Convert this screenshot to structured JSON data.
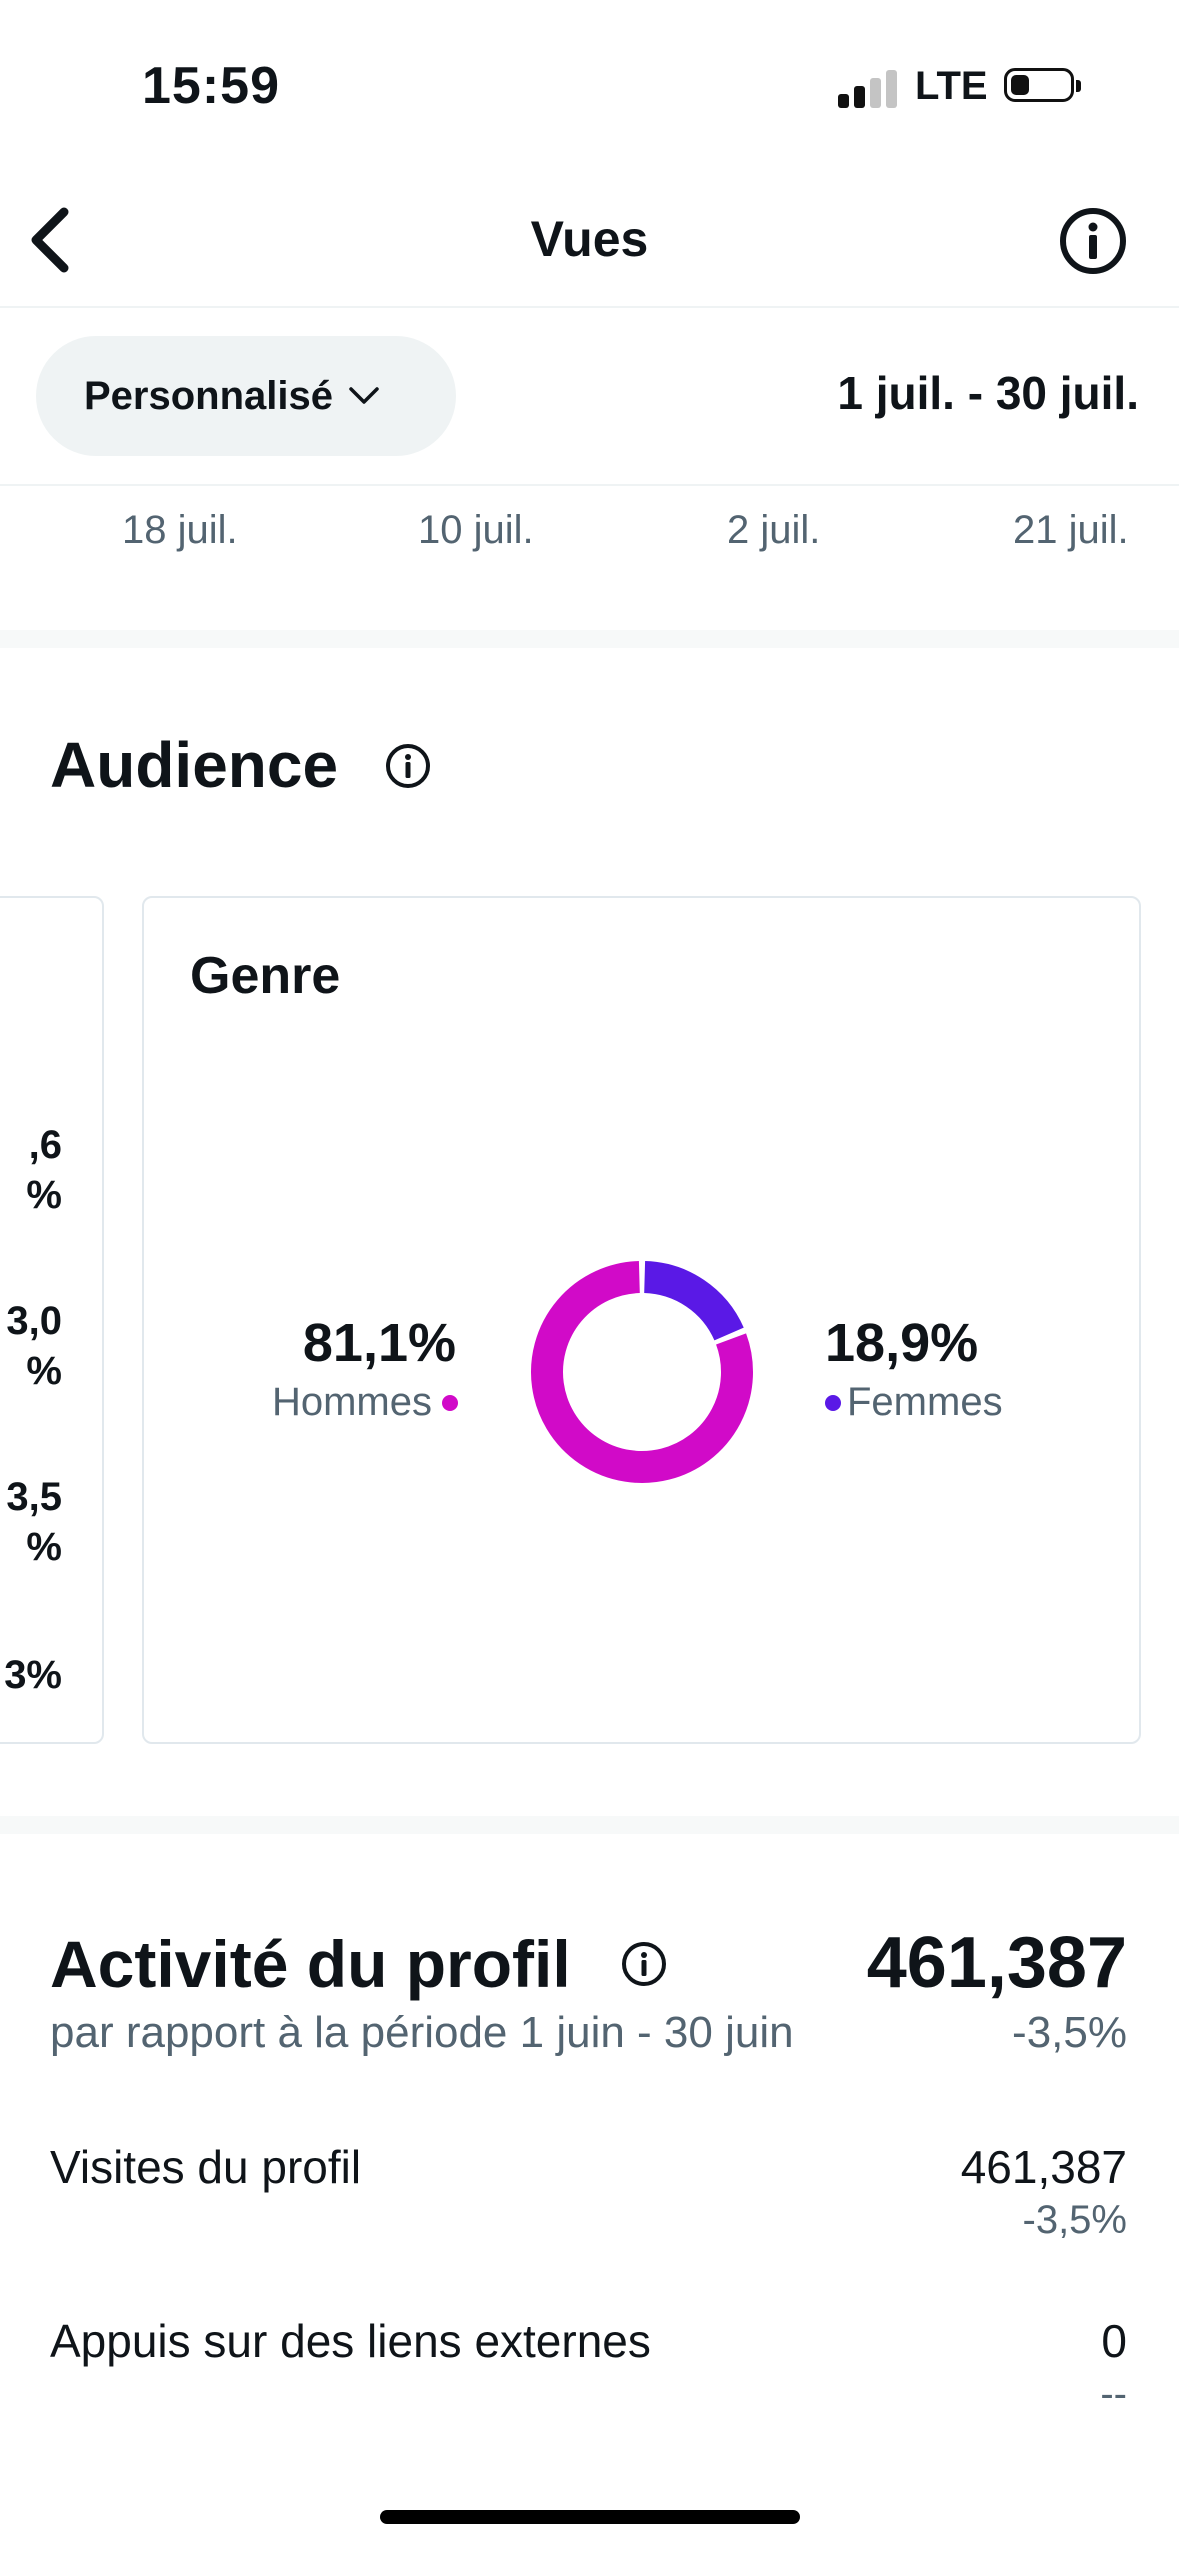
{
  "status_bar": {
    "time": "15:59",
    "network": "LTE"
  },
  "header": {
    "title": "Vues"
  },
  "filter": {
    "chip_label": "Personnalisé",
    "date_range": "1 juil. - 30 juil."
  },
  "date_axis": [
    "18 juil.",
    "10 juil.",
    "2 juil.",
    "21 juil."
  ],
  "audience": {
    "title": "Audience",
    "left_card_values": [
      ",6\n%",
      "3,0\n%",
      "3,5\n%",
      "3%"
    ],
    "genre": {
      "title": "Genre",
      "men": {
        "pct": "81,1%",
        "label": "Hommes",
        "value": 81.1,
        "color": "#d10ac8"
      },
      "women": {
        "pct": "18,9%",
        "label": "Femmes",
        "value": 18.9,
        "color": "#5a19e6"
      }
    }
  },
  "activity": {
    "title": "Activité du profil",
    "total": "461,387",
    "subtitle": "par rapport à la période 1 juin - 30 juin",
    "delta": "-3,5%",
    "rows": [
      {
        "label": "Visites du profil",
        "value": "461,387",
        "delta": "-3,5%"
      },
      {
        "label": "Appuis sur des liens externes",
        "value": "0",
        "delta": "--"
      }
    ]
  }
}
